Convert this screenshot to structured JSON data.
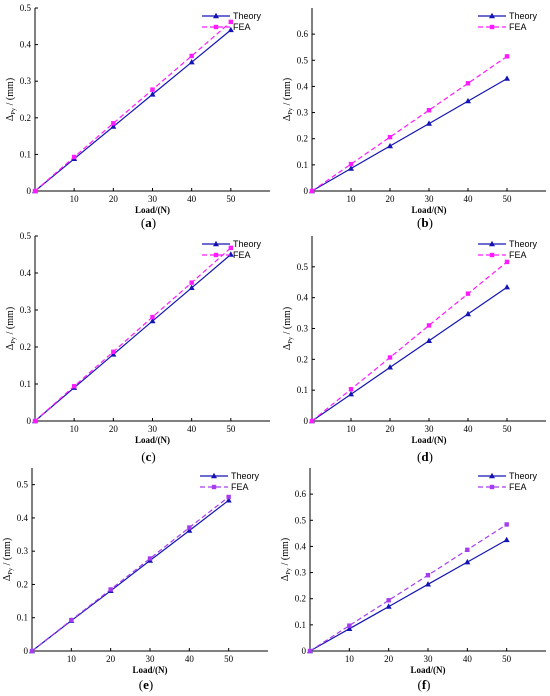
{
  "chart_data": [
    {
      "type": "line",
      "caption": "a",
      "xlabel": "Load/(N)",
      "ylabel_main": "Δ",
      "ylabel_sub": "Py",
      "ylabel_unit": " / (mm)",
      "xlim": [
        0,
        60
      ],
      "ylim": [
        0,
        0.5
      ],
      "xticks": [
        10,
        20,
        30,
        40,
        50
      ],
      "yticks": [
        0,
        0.1,
        0.2,
        0.3,
        0.4,
        0.5
      ],
      "legend_position": "top-right",
      "x": [
        0,
        10,
        20,
        30,
        40,
        50
      ],
      "series": [
        {
          "name": "Theory",
          "values": [
            0,
            0.088,
            0.176,
            0.264,
            0.352,
            0.44
          ],
          "color": "#1414b4",
          "marker": "triangle",
          "dash": "solid"
        },
        {
          "name": "FEA",
          "values": [
            0,
            0.093,
            0.185,
            0.277,
            0.369,
            0.462
          ],
          "color": "#ff1aff",
          "marker": "square",
          "dash": "dashed"
        }
      ]
    },
    {
      "type": "line",
      "caption": "b",
      "xlabel": "Load/(N)",
      "ylabel_main": "Δ",
      "ylabel_sub": "Py",
      "ylabel_unit": " / (mm)",
      "xlim": [
        0,
        60
      ],
      "ylim": [
        0,
        0.7
      ],
      "xticks": [
        10,
        20,
        30,
        40,
        50
      ],
      "yticks": [
        0,
        0.1,
        0.2,
        0.3,
        0.4,
        0.5,
        0.6
      ],
      "legend_position": "top-right",
      "x": [
        0,
        10,
        20,
        30,
        40,
        50
      ],
      "series": [
        {
          "name": "Theory",
          "values": [
            0,
            0.086,
            0.172,
            0.258,
            0.344,
            0.43
          ],
          "color": "#1414b4",
          "marker": "triangle",
          "dash": "solid"
        },
        {
          "name": "FEA",
          "values": [
            0,
            0.103,
            0.206,
            0.309,
            0.412,
            0.515
          ],
          "color": "#ff1aff",
          "marker": "square",
          "dash": "dashed"
        }
      ]
    },
    {
      "type": "line",
      "caption": "c",
      "xlabel": "Load/(N)",
      "ylabel_main": "Δ",
      "ylabel_sub": "Py",
      "ylabel_unit": " / (mm)",
      "xlim": [
        0,
        60
      ],
      "ylim": [
        0,
        0.5
      ],
      "xticks": [
        10,
        20,
        30,
        40,
        50
      ],
      "yticks": [
        0,
        0.1,
        0.2,
        0.3,
        0.4,
        0.5
      ],
      "legend_position": "top-right",
      "x": [
        0,
        10,
        20,
        30,
        40,
        50
      ],
      "series": [
        {
          "name": "Theory",
          "values": [
            0,
            0.09,
            0.18,
            0.27,
            0.36,
            0.45
          ],
          "color": "#1414b4",
          "marker": "triangle",
          "dash": "solid"
        },
        {
          "name": "FEA",
          "values": [
            0,
            0.094,
            0.187,
            0.281,
            0.374,
            0.468
          ],
          "color": "#ff1aff",
          "marker": "square",
          "dash": "dashed"
        }
      ]
    },
    {
      "type": "line",
      "caption": "d",
      "xlabel": "Load/(N)",
      "ylabel_main": "Δ",
      "ylabel_sub": "Py",
      "ylabel_unit": " / (mm)",
      "xlim": [
        0,
        60
      ],
      "ylim": [
        0,
        0.6
      ],
      "xticks": [
        10,
        20,
        30,
        40,
        50
      ],
      "yticks": [
        0,
        0.1,
        0.2,
        0.3,
        0.4,
        0.5
      ],
      "legend_position": "top-right",
      "x": [
        0,
        10,
        20,
        30,
        40,
        50
      ],
      "series": [
        {
          "name": "Theory",
          "values": [
            0,
            0.087,
            0.174,
            0.26,
            0.347,
            0.434
          ],
          "color": "#1414b4",
          "marker": "triangle",
          "dash": "solid"
        },
        {
          "name": "FEA",
          "values": [
            0,
            0.103,
            0.206,
            0.31,
            0.413,
            0.516
          ],
          "color": "#ff1aff",
          "marker": "square",
          "dash": "dashed"
        }
      ]
    },
    {
      "type": "line",
      "caption": "e",
      "xlabel": "Load/(N)",
      "ylabel_main": "Δ",
      "ylabel_sub": "Py",
      "ylabel_unit": " / (mm)",
      "xlim": [
        0,
        60
      ],
      "ylim": [
        0,
        0.55
      ],
      "xticks": [
        10,
        20,
        30,
        40,
        50
      ],
      "yticks": [
        0,
        0.1,
        0.2,
        0.3,
        0.4,
        0.5
      ],
      "legend_position": "top-right",
      "x": [
        0,
        10,
        20,
        30,
        40,
        50
      ],
      "series": [
        {
          "name": "Theory",
          "values": [
            0,
            0.091,
            0.181,
            0.272,
            0.362,
            0.453
          ],
          "color": "#1414b4",
          "marker": "triangle",
          "dash": "solid"
        },
        {
          "name": "FEA",
          "values": [
            0,
            0.093,
            0.185,
            0.278,
            0.371,
            0.463
          ],
          "color": "#a63cf0",
          "marker": "square",
          "dash": "dashed"
        }
      ]
    },
    {
      "type": "line",
      "caption": "f",
      "xlabel": "Load/(N)",
      "ylabel_main": "Δ",
      "ylabel_sub": "Py",
      "ylabel_unit": " / (mm)",
      "xlim": [
        0,
        60
      ],
      "ylim": [
        0,
        0.7
      ],
      "xticks": [
        10,
        20,
        30,
        40,
        50
      ],
      "yticks": [
        0,
        0.1,
        0.2,
        0.3,
        0.4,
        0.5,
        0.6
      ],
      "legend_position": "top-right",
      "x": [
        0,
        10,
        20,
        30,
        40,
        50
      ],
      "series": [
        {
          "name": "Theory",
          "values": [
            0,
            0.085,
            0.17,
            0.255,
            0.34,
            0.425
          ],
          "color": "#1414b4",
          "marker": "triangle",
          "dash": "solid"
        },
        {
          "name": "FEA",
          "values": [
            0,
            0.097,
            0.194,
            0.29,
            0.387,
            0.484
          ],
          "color": "#a63cf0",
          "marker": "square",
          "dash": "dashed"
        }
      ]
    }
  ]
}
